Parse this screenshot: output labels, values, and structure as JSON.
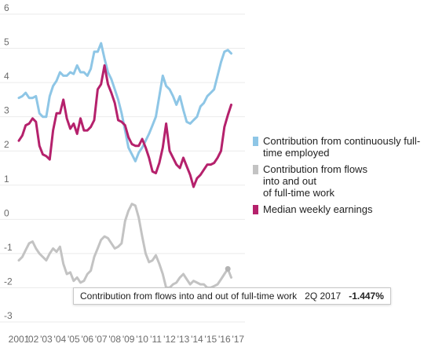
{
  "chart_data": {
    "type": "line",
    "y_ticks": [
      "6",
      "5",
      "4",
      "3",
      "2",
      "1",
      "0",
      "-1",
      "-2",
      "-3"
    ],
    "ylim": [
      -3,
      6
    ],
    "x_tick_labels": [
      "2001",
      "'02",
      "'03",
      "'04",
      "'05",
      "'06",
      "'07",
      "'08",
      "'09",
      "'10",
      "'11",
      "'12",
      "'13",
      "'14",
      "'15",
      "'16",
      "'17"
    ],
    "xlim": [
      2001.0,
      2017.5
    ],
    "grid": true,
    "legend_placement": "right",
    "series": [
      {
        "name": "Contribution from continuously full-time employed",
        "color": "#8ec6e6",
        "points": [
          [
            2001.0,
            3.55
          ],
          [
            2001.25,
            3.6
          ],
          [
            2001.5,
            3.7
          ],
          [
            2001.75,
            3.55
          ],
          [
            2002.0,
            3.55
          ],
          [
            2002.25,
            3.6
          ],
          [
            2002.5,
            3.1
          ],
          [
            2002.75,
            3.0
          ],
          [
            2003.0,
            3.0
          ],
          [
            2003.25,
            3.6
          ],
          [
            2003.5,
            3.9
          ],
          [
            2003.75,
            4.05
          ],
          [
            2004.0,
            4.3
          ],
          [
            2004.25,
            4.2
          ],
          [
            2004.5,
            4.2
          ],
          [
            2004.75,
            4.3
          ],
          [
            2005.0,
            4.25
          ],
          [
            2005.25,
            4.5
          ],
          [
            2005.5,
            4.3
          ],
          [
            2005.75,
            4.3
          ],
          [
            2006.0,
            4.2
          ],
          [
            2006.25,
            4.4
          ],
          [
            2006.5,
            4.9
          ],
          [
            2006.75,
            4.9
          ],
          [
            2007.0,
            5.15
          ],
          [
            2007.25,
            4.7
          ],
          [
            2007.5,
            4.3
          ],
          [
            2007.75,
            4.1
          ],
          [
            2008.0,
            3.8
          ],
          [
            2008.25,
            3.5
          ],
          [
            2008.5,
            3.1
          ],
          [
            2008.75,
            2.6
          ],
          [
            2009.0,
            2.1
          ],
          [
            2009.25,
            1.9
          ],
          [
            2009.5,
            1.7
          ],
          [
            2009.75,
            1.95
          ],
          [
            2010.0,
            2.1
          ],
          [
            2010.25,
            2.3
          ],
          [
            2010.5,
            2.5
          ],
          [
            2010.75,
            2.75
          ],
          [
            2011.0,
            3.0
          ],
          [
            2011.25,
            3.6
          ],
          [
            2011.5,
            4.2
          ],
          [
            2011.75,
            3.9
          ],
          [
            2012.0,
            3.8
          ],
          [
            2012.25,
            3.6
          ],
          [
            2012.5,
            3.35
          ],
          [
            2012.75,
            3.6
          ],
          [
            2013.0,
            3.2
          ],
          [
            2013.25,
            2.85
          ],
          [
            2013.5,
            2.8
          ],
          [
            2013.75,
            2.9
          ],
          [
            2014.0,
            3.0
          ],
          [
            2014.25,
            3.3
          ],
          [
            2014.5,
            3.4
          ],
          [
            2014.75,
            3.6
          ],
          [
            2015.0,
            3.7
          ],
          [
            2015.25,
            3.8
          ],
          [
            2015.5,
            4.2
          ],
          [
            2015.75,
            4.6
          ],
          [
            2016.0,
            4.9
          ],
          [
            2016.25,
            4.95
          ],
          [
            2016.5,
            4.85
          ]
        ]
      },
      {
        "name": "Contribution from flows\ninto and out\nof full-time work",
        "color": "#c3c3c3",
        "points": [
          [
            2001.0,
            -1.2
          ],
          [
            2001.25,
            -1.1
          ],
          [
            2001.5,
            -0.9
          ],
          [
            2001.75,
            -0.7
          ],
          [
            2002.0,
            -0.65
          ],
          [
            2002.25,
            -0.85
          ],
          [
            2002.5,
            -1.0
          ],
          [
            2002.75,
            -1.1
          ],
          [
            2003.0,
            -1.2
          ],
          [
            2003.25,
            -1.0
          ],
          [
            2003.5,
            -0.85
          ],
          [
            2003.75,
            -0.95
          ],
          [
            2004.0,
            -0.8
          ],
          [
            2004.25,
            -1.3
          ],
          [
            2004.5,
            -1.6
          ],
          [
            2004.75,
            -1.55
          ],
          [
            2005.0,
            -1.8
          ],
          [
            2005.25,
            -1.7
          ],
          [
            2005.5,
            -1.85
          ],
          [
            2005.75,
            -1.8
          ],
          [
            2006.0,
            -1.6
          ],
          [
            2006.25,
            -1.5
          ],
          [
            2006.5,
            -1.1
          ],
          [
            2006.75,
            -0.85
          ],
          [
            2007.0,
            -0.6
          ],
          [
            2007.25,
            -0.5
          ],
          [
            2007.5,
            -0.55
          ],
          [
            2007.75,
            -0.7
          ],
          [
            2008.0,
            -0.85
          ],
          [
            2008.25,
            -0.8
          ],
          [
            2008.5,
            -0.7
          ],
          [
            2008.75,
            -0.05
          ],
          [
            2009.0,
            0.25
          ],
          [
            2009.25,
            0.45
          ],
          [
            2009.5,
            0.4
          ],
          [
            2009.75,
            0.05
          ],
          [
            2010.0,
            -0.5
          ],
          [
            2010.25,
            -1.0
          ],
          [
            2010.5,
            -1.25
          ],
          [
            2010.75,
            -1.2
          ],
          [
            2011.0,
            -1.05
          ],
          [
            2011.25,
            -1.3
          ],
          [
            2011.5,
            -1.6
          ],
          [
            2011.75,
            -2.0
          ],
          [
            2012.0,
            -2.0
          ],
          [
            2012.25,
            -1.9
          ],
          [
            2012.5,
            -1.85
          ],
          [
            2012.75,
            -1.7
          ],
          [
            2013.0,
            -1.6
          ],
          [
            2013.25,
            -1.75
          ],
          [
            2013.5,
            -1.9
          ],
          [
            2013.75,
            -1.8
          ],
          [
            2014.0,
            -1.85
          ],
          [
            2014.25,
            -1.9
          ],
          [
            2014.5,
            -1.9
          ],
          [
            2014.75,
            -2.0
          ],
          [
            2015.0,
            -2.0
          ],
          [
            2015.25,
            -1.95
          ],
          [
            2015.5,
            -1.9
          ],
          [
            2015.75,
            -1.75
          ],
          [
            2016.0,
            -1.6
          ],
          [
            2016.25,
            -1.45
          ],
          [
            2016.5,
            -1.7
          ]
        ]
      },
      {
        "name": "Median weekly earnings",
        "color": "#b5216c",
        "points": [
          [
            2001.0,
            2.3
          ],
          [
            2001.25,
            2.45
          ],
          [
            2001.5,
            2.75
          ],
          [
            2001.75,
            2.8
          ],
          [
            2002.0,
            2.95
          ],
          [
            2002.25,
            2.85
          ],
          [
            2002.5,
            2.15
          ],
          [
            2002.75,
            1.9
          ],
          [
            2003.0,
            1.85
          ],
          [
            2003.25,
            1.75
          ],
          [
            2003.5,
            2.6
          ],
          [
            2003.75,
            3.1
          ],
          [
            2004.0,
            3.1
          ],
          [
            2004.25,
            3.5
          ],
          [
            2004.5,
            2.95
          ],
          [
            2004.75,
            2.65
          ],
          [
            2005.0,
            2.8
          ],
          [
            2005.25,
            2.5
          ],
          [
            2005.5,
            2.95
          ],
          [
            2005.75,
            2.6
          ],
          [
            2006.0,
            2.6
          ],
          [
            2006.25,
            2.7
          ],
          [
            2006.5,
            2.9
          ],
          [
            2006.75,
            3.8
          ],
          [
            2007.0,
            3.95
          ],
          [
            2007.25,
            4.5
          ],
          [
            2007.5,
            3.95
          ],
          [
            2007.75,
            3.7
          ],
          [
            2008.0,
            3.4
          ],
          [
            2008.25,
            2.9
          ],
          [
            2008.5,
            2.85
          ],
          [
            2008.75,
            2.75
          ],
          [
            2009.0,
            2.4
          ],
          [
            2009.25,
            2.2
          ],
          [
            2009.5,
            2.15
          ],
          [
            2009.75,
            2.15
          ],
          [
            2010.0,
            2.35
          ],
          [
            2010.25,
            2.1
          ],
          [
            2010.5,
            1.8
          ],
          [
            2010.75,
            1.4
          ],
          [
            2011.0,
            1.35
          ],
          [
            2011.25,
            1.65
          ],
          [
            2011.5,
            2.1
          ],
          [
            2011.75,
            2.8
          ],
          [
            2012.0,
            2.0
          ],
          [
            2012.25,
            1.8
          ],
          [
            2012.5,
            1.6
          ],
          [
            2012.75,
            1.5
          ],
          [
            2013.0,
            1.8
          ],
          [
            2013.25,
            1.55
          ],
          [
            2013.5,
            1.3
          ],
          [
            2013.75,
            0.95
          ],
          [
            2014.0,
            1.2
          ],
          [
            2014.25,
            1.3
          ],
          [
            2014.5,
            1.45
          ],
          [
            2014.75,
            1.6
          ],
          [
            2015.0,
            1.6
          ],
          [
            2015.25,
            1.65
          ],
          [
            2015.5,
            1.8
          ],
          [
            2015.75,
            2.0
          ],
          [
            2016.0,
            2.7
          ],
          [
            2016.25,
            3.05
          ],
          [
            2016.5,
            3.35
          ]
        ]
      }
    ],
    "tooltip": {
      "series_name": "Contribution from flows into and out of full-time work",
      "period": "2Q 2017",
      "value": "-1.447%",
      "x": 2016.25,
      "y": -1.447
    }
  }
}
